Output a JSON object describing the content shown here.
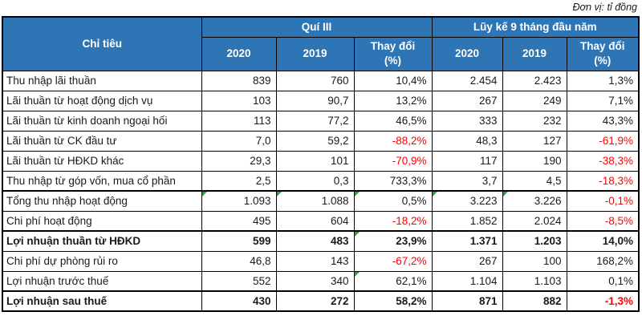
{
  "chart_data": {
    "type": "table",
    "unit_note": "Đơn vị: tỉ đồng",
    "row_header": "Chỉ tiêu",
    "groups": [
      "Quí III",
      "Lũy kế 9 tháng đầu năm"
    ],
    "sub_columns": [
      "2020",
      "2019",
      "Thay đổi\n(%)",
      "2020",
      "2019",
      "Thay đổi\n(%)"
    ],
    "rows": [
      {
        "label": "Thu nhập lãi thuần",
        "values": [
          "839",
          "760",
          "10,4%",
          "2.454",
          "2.423",
          "1,3%"
        ],
        "negative": [],
        "error_flags": [],
        "bold": false
      },
      {
        "label": "Lãi thuần từ hoạt động dịch vụ",
        "values": [
          "103",
          "90,7",
          "13,2%",
          "267",
          "249",
          "7,1%"
        ],
        "negative": [],
        "error_flags": [],
        "bold": false
      },
      {
        "label": "Lãi thuần từ kinh doanh ngoại hối",
        "values": [
          "113",
          "77,2",
          "46,5%",
          "333",
          "232",
          "43,3%"
        ],
        "negative": [],
        "error_flags": [],
        "bold": false
      },
      {
        "label": "Lãi thuần từ CK đầu tư",
        "values": [
          "7,0",
          "59,2",
          "-88,2%",
          "48,3",
          "127",
          "-61,9%"
        ],
        "negative": [
          2,
          5
        ],
        "error_flags": [],
        "bold": false
      },
      {
        "label": "Lãi thuần từ HĐKD khác",
        "values": [
          "29,3",
          "101",
          "-70,9%",
          "117",
          "190",
          "-38,3%"
        ],
        "negative": [
          2,
          5
        ],
        "error_flags": [],
        "bold": false
      },
      {
        "label": "Thu nhập từ góp vốn, mua cổ phần",
        "values": [
          "2,5",
          "0,3",
          "733,3%",
          "3,7",
          "4,5",
          "-18,3%"
        ],
        "negative": [
          5
        ],
        "error_flags": [],
        "bold": false
      },
      {
        "label": "Tổng thu nhập hoạt động",
        "values": [
          "1.093",
          "1.088",
          "0,5%",
          "3.223",
          "3.226",
          "-0,1%"
        ],
        "negative": [
          5
        ],
        "error_flags": [
          0,
          1,
          2,
          3,
          4
        ],
        "bold": false
      },
      {
        "label": "Chi phí hoạt động",
        "values": [
          "495",
          "604",
          "-18,2%",
          "1.852",
          "2.024",
          "-8,5%"
        ],
        "negative": [
          2,
          5
        ],
        "error_flags": [],
        "bold": false
      },
      {
        "label": "Lợi nhuận thuần từ HĐKD",
        "values": [
          "599",
          "483",
          "23,9%",
          "1.371",
          "1.203",
          "14,0%"
        ],
        "negative": [],
        "error_flags": [
          2
        ],
        "bold": true
      },
      {
        "label": "Chi phí dự phòng rủi ro",
        "values": [
          "46,8",
          "143",
          "-67,2%",
          "267",
          "100",
          "168,2%"
        ],
        "negative": [
          2
        ],
        "error_flags": [],
        "bold": false
      },
      {
        "label": "Lợi nhuận trước thuế",
        "values": [
          "552",
          "340",
          "62,1%",
          "1.104",
          "1.103",
          "0,1%"
        ],
        "negative": [],
        "error_flags": [
          2
        ],
        "bold": false
      },
      {
        "label": "Lợi nhuận sau thuế",
        "values": [
          "430",
          "272",
          "58,2%",
          "871",
          "882",
          "-1,3%"
        ],
        "negative": [
          5
        ],
        "error_flags": [],
        "bold": true
      }
    ]
  },
  "colors": {
    "header_bg": "#2E75B6",
    "header_text": "#FFFFFF",
    "negative": "#FF0000",
    "text": "#1A1A1A",
    "error_triangle": "#2F9E44"
  },
  "layout": {
    "col_names": [
      "q3-2020",
      "q3-2019",
      "q3-change",
      "lk-2020",
      "lk-2019",
      "lk-change"
    ]
  }
}
